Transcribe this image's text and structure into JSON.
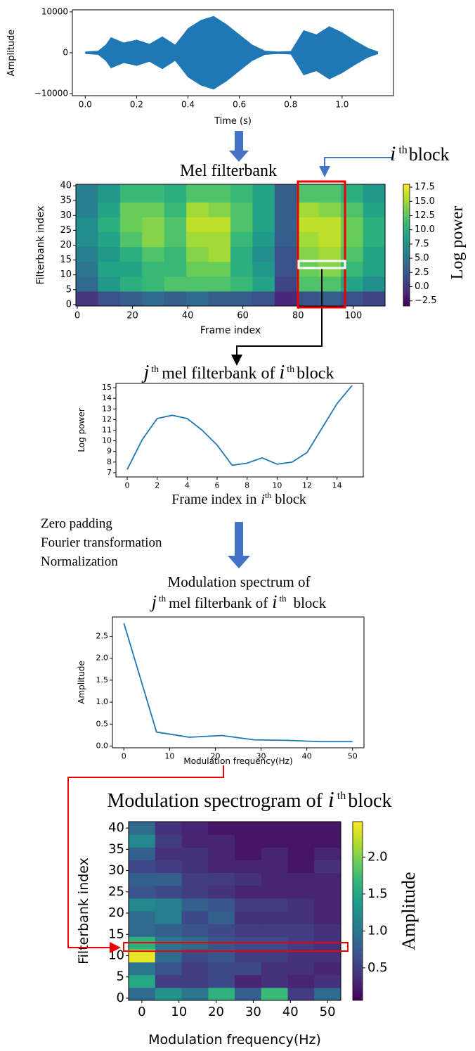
{
  "chart_data": [
    {
      "type": "waveform",
      "xlabel": "Time (s)",
      "ylabel": "Amplitude",
      "color": "#1f77b4",
      "x": [
        0,
        0.05,
        0.08,
        0.1,
        0.15,
        0.2,
        0.25,
        0.3,
        0.35,
        0.4,
        0.45,
        0.5,
        0.55,
        0.6,
        0.65,
        0.7,
        0.75,
        0.8,
        0.85,
        0.9,
        0.95,
        1.0,
        1.05,
        1.1,
        1.14
      ],
      "values": [
        300,
        500,
        2000,
        3800,
        2500,
        3200,
        2200,
        4000,
        2000,
        6000,
        8000,
        9000,
        7000,
        4500,
        2000,
        500,
        300,
        400,
        5500,
        4500,
        6500,
        5000,
        3000,
        1200,
        300
      ],
      "xlim": [
        -0.05,
        1.2
      ],
      "ylim": [
        -10500,
        10500
      ],
      "xticks": [
        {
          "value": 0,
          "label": "0.0"
        },
        0.2,
        0.4,
        0.6,
        0.8,
        {
          "value": 1,
          "label": "1.0"
        }
      ],
      "yticks": [
        {
          "value": -10000,
          "label": "−10000"
        },
        0,
        10000
      ]
    },
    {
      "type": "heatmap",
      "title": "Mel filterbank",
      "xlabel": "Frame index",
      "ylabel": "Filterbank index",
      "colormap": "viridis",
      "x_edges": [
        -0.5,
        7.5,
        15.5,
        23.5,
        31.5,
        39.5,
        47.5,
        55.5,
        63.5,
        71.5,
        79.5,
        87.5,
        95.5,
        103.5,
        111.5
      ],
      "y_edges": [
        -0.5,
        4.5,
        9.5,
        14.5,
        19.5,
        24.5,
        29.5,
        34.5,
        40.5
      ],
      "values": [
        [
          0,
          2,
          3,
          4,
          3,
          4,
          3,
          3,
          2,
          -1,
          2,
          3,
          2,
          1
        ],
        [
          4,
          8,
          10,
          11,
          12,
          12,
          12,
          11,
          9,
          1,
          12,
          12,
          9,
          7
        ],
        [
          5,
          9,
          9,
          11,
          11,
          13,
          13,
          10,
          8,
          2,
          13,
          14,
          11,
          9
        ],
        [
          6,
          8,
          10,
          12,
          11,
          14,
          15,
          10,
          7,
          2,
          14,
          15,
          12,
          9
        ],
        [
          7,
          9,
          12,
          14,
          12,
          15,
          15,
          11,
          8,
          3,
          15,
          16,
          13,
          10
        ],
        [
          7,
          10,
          13,
          14,
          12,
          16,
          16,
          12,
          9,
          3,
          16,
          16,
          13,
          10
        ],
        [
          6,
          9,
          13,
          13,
          11,
          15,
          14,
          12,
          9,
          3,
          15,
          14,
          12,
          9
        ],
        [
          6,
          8,
          11,
          11,
          10,
          12,
          12,
          11,
          9,
          3,
          12,
          12,
          10,
          8
        ]
      ],
      "xlim": [
        -0.5,
        111.5
      ],
      "ylim": [
        -0.5,
        40.5
      ],
      "xticks": [
        0,
        20,
        40,
        60,
        80,
        100
      ],
      "yticks": [
        0,
        5,
        10,
        15,
        20,
        25,
        30,
        35,
        40
      ],
      "colorbar": {
        "label": "Log power",
        "clim": [
          -3.4,
          18
        ],
        "ticks": [
          {
            "value": -2.5,
            "label": "−2.5"
          },
          {
            "value": 0,
            "label": "0.0"
          },
          2.5,
          {
            "value": 5,
            "label": "5.0"
          },
          7.5,
          {
            "value": 10,
            "label": "10.0"
          },
          12.5,
          {
            "value": 15,
            "label": "15.0"
          },
          17.5
        ]
      }
    },
    {
      "type": "line",
      "ylabel": "Log power",
      "color": "#1f77b4",
      "x": [
        0,
        1,
        2,
        3,
        4,
        5,
        6,
        7,
        8,
        9,
        10,
        11,
        12,
        13,
        14,
        15
      ],
      "values": [
        7.3,
        10.1,
        12.1,
        12.4,
        12.1,
        11.0,
        9.6,
        7.7,
        7.9,
        8.4,
        7.8,
        8.0,
        8.9,
        11.2,
        13.5,
        15.2
      ],
      "xlim": [
        -0.75,
        15.75
      ],
      "ylim": [
        6.6,
        15.4
      ],
      "xticks": [
        0,
        2,
        4,
        6,
        8,
        10,
        12,
        14
      ],
      "yticks": [
        7,
        8,
        9,
        10,
        11,
        12,
        13,
        14,
        15
      ]
    },
    {
      "type": "line",
      "xlabel": "Modulation frequency(Hz)",
      "ylabel": "Amplitude",
      "color": "#1f77b4",
      "x": [
        0,
        7.14,
        14.29,
        21.43,
        28.57,
        35.71,
        42.86,
        50
      ],
      "values": [
        2.8,
        0.32,
        0.2,
        0.24,
        0.14,
        0.13,
        0.1,
        0.1
      ],
      "xlim": [
        -2.5,
        52.5
      ],
      "ylim": [
        -0.04,
        2.94
      ],
      "xticks": [
        0,
        10,
        20,
        30,
        40,
        50
      ],
      "yticks": [
        {
          "value": 0,
          "label": "0.0"
        },
        0.5,
        {
          "value": 1,
          "label": "1.0"
        },
        1.5,
        {
          "value": 2,
          "label": "2.0"
        },
        2.5
      ]
    },
    {
      "type": "heatmap",
      "xlabel": "Modulation frequency(Hz)",
      "ylabel": "Filterbank index",
      "colormap": "viridis",
      "x_edges": [
        -3.57,
        3.57,
        10.71,
        17.86,
        25,
        32.14,
        39.29,
        46.43,
        53.57
      ],
      "y_edges": [
        -0.5,
        2.5,
        5.5,
        8.5,
        11.5,
        14.5,
        17.5,
        20.5,
        23.5,
        26.5,
        29.5,
        32.5,
        35.5,
        38.5,
        41.5
      ],
      "values": [
        [
          0.9,
          1.3,
          1.0,
          1.6,
          0.8,
          1.7,
          0.5,
          0.9
        ],
        [
          1.5,
          0.5,
          0.5,
          0.6,
          0.3,
          0.4,
          0.3,
          0.4
        ],
        [
          1.0,
          0.7,
          0.5,
          0.6,
          0.6,
          0.4,
          0.4,
          0.3
        ],
        [
          2.4,
          0.9,
          0.6,
          0.7,
          0.5,
          0.5,
          0.4,
          0.4
        ],
        [
          1.6,
          1.0,
          0.9,
          0.7,
          0.6,
          0.6,
          0.5,
          0.4
        ],
        [
          0.9,
          0.8,
          0.7,
          0.6,
          0.5,
          0.5,
          0.5,
          0.4
        ],
        [
          0.9,
          1.1,
          0.6,
          0.8,
          0.4,
          0.4,
          0.4,
          0.3
        ],
        [
          1.2,
          1.1,
          0.8,
          0.7,
          0.5,
          0.5,
          0.4,
          0.3
        ],
        [
          0.7,
          0.6,
          0.5,
          0.4,
          0.3,
          0.3,
          0.3,
          0.3
        ],
        [
          0.8,
          0.8,
          0.5,
          0.5,
          0.4,
          0.3,
          0.3,
          0.3
        ],
        [
          0.6,
          0.5,
          0.4,
          0.3,
          0.3,
          0.3,
          0.2,
          0.4
        ],
        [
          0.8,
          0.4,
          0.4,
          0.3,
          0.2,
          0.3,
          0.2,
          0.3
        ],
        [
          1.2,
          0.5,
          0.3,
          0.3,
          0.2,
          0.2,
          0.2,
          0.2
        ],
        [
          0.9,
          0.4,
          0.3,
          0.2,
          0.2,
          0.2,
          0.2,
          0.2
        ]
      ],
      "xlim": [
        -3.57,
        53.57
      ],
      "ylim": [
        -0.5,
        41.5
      ],
      "xticks": [
        0,
        10,
        20,
        30,
        40,
        50
      ],
      "yticks": [
        0,
        5,
        10,
        15,
        20,
        25,
        30,
        35,
        40
      ],
      "colorbar": {
        "label": "Amplitude",
        "clim": [
          0.06,
          2.48
        ],
        "ticks": [
          0.5,
          {
            "value": 1,
            "label": "1.0"
          },
          1.5,
          {
            "value": 2,
            "label": "2.0"
          }
        ]
      }
    }
  ],
  "annotations": {
    "block_label": [
      "i",
      "th",
      "block"
    ],
    "jth_title": [
      "j",
      "th",
      "mel filterbank of",
      "i",
      "th",
      "block"
    ],
    "frame_axis": [
      "Frame index in",
      "i",
      "th",
      "block"
    ],
    "steps": [
      "Zero padding",
      "Fourier transformation",
      "Normalization"
    ],
    "mod_title": [
      "Modulation spectrum of",
      "j",
      "th",
      "mel filterbank of",
      "i",
      "th",
      "block"
    ],
    "spec_title": [
      "Modulation spectrogram of",
      "i",
      "th",
      "block"
    ]
  }
}
